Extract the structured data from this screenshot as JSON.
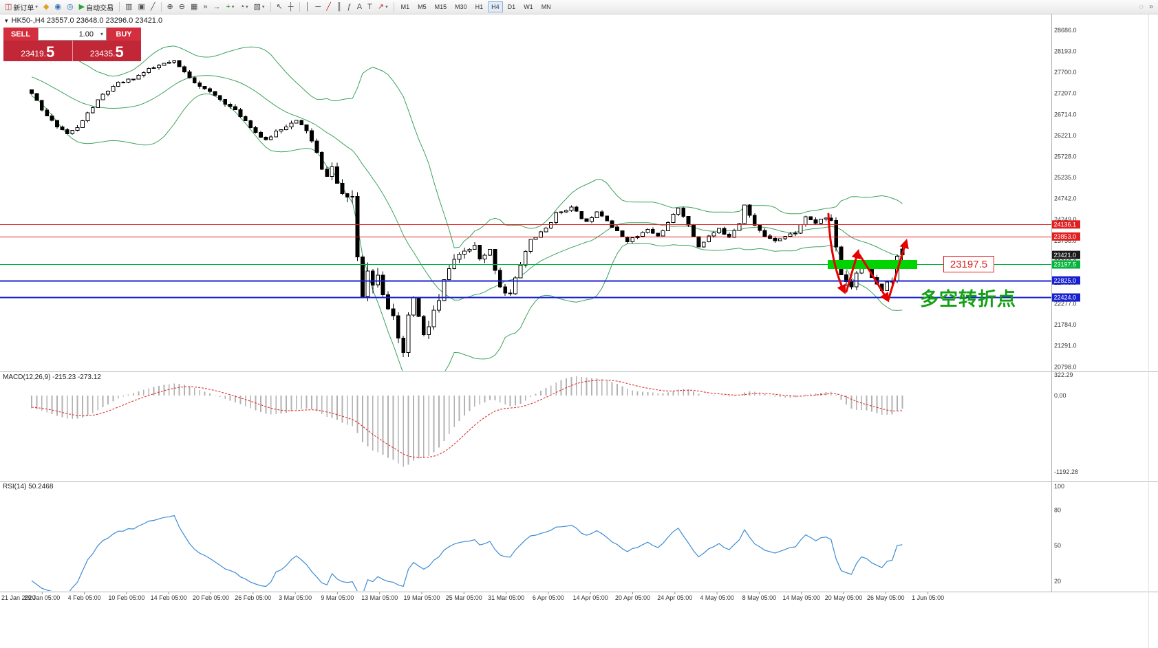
{
  "toolbar": {
    "new_order_label": "新订单",
    "autotrading_label": "自动交易",
    "timeframes": [
      "M1",
      "M5",
      "M15",
      "M30",
      "H1",
      "H4",
      "D1",
      "W1",
      "MN"
    ],
    "active_timeframe": "H4",
    "items": [
      {
        "kind": "labeled",
        "name": "new-order-button",
        "glyph": "◫",
        "glyph_color": "#a83232",
        "label_key": "new_order_label",
        "dropdown": true
      },
      {
        "kind": "icon",
        "name": "metaeditor-icon",
        "glyph": "◆",
        "color": "#d9a521"
      },
      {
        "kind": "icon",
        "name": "algo-trading-icon",
        "glyph": "◉",
        "color": "#3070b8"
      },
      {
        "kind": "icon",
        "name": "market-info-icon",
        "glyph": "◎",
        "color": "#3070b8"
      },
      {
        "kind": "labeled",
        "name": "autotrading-button",
        "glyph": "▶",
        "glyph_color": "#2fa23a",
        "label_key": "autotrading_label",
        "dropdown": false
      },
      {
        "kind": "sep"
      },
      {
        "kind": "icon",
        "name": "bar-chart-icon",
        "glyph": "▥",
        "color": "#505050"
      },
      {
        "kind": "icon",
        "name": "candlestick-chart-icon",
        "glyph": "▣",
        "color": "#505050"
      },
      {
        "kind": "icon",
        "name": "line-chart-icon",
        "glyph": "╱",
        "color": "#505050"
      },
      {
        "kind": "sep"
      },
      {
        "kind": "icon",
        "name": "zoom-in-icon",
        "glyph": "⊕",
        "color": "#505050"
      },
      {
        "kind": "icon",
        "name": "zoom-out-icon",
        "glyph": "⊖",
        "color": "#505050"
      },
      {
        "kind": "icon",
        "name": "tile-windows-icon",
        "glyph": "▦",
        "color": "#505050"
      },
      {
        "kind": "icon",
        "name": "auto-scroll-icon",
        "glyph": "»",
        "color": "#505050"
      },
      {
        "kind": "icon",
        "name": "chart-shift-icon",
        "glyph": "→",
        "color": "#505050"
      },
      {
        "kind": "icon-dd",
        "name": "indicators-menu-icon",
        "glyph": "+",
        "color": "#1e9e3c"
      },
      {
        "kind": "icon-dd",
        "name": "periods-menu-icon",
        "glyph": "◔",
        "color": "#505050"
      },
      {
        "kind": "icon-dd",
        "name": "templates-menu-icon",
        "glyph": "▧",
        "color": "#505050"
      },
      {
        "kind": "sep"
      },
      {
        "kind": "icon",
        "name": "cursor-icon",
        "glyph": "↖",
        "color": "#505050"
      },
      {
        "kind": "icon",
        "name": "crosshair-icon",
        "glyph": "┼",
        "color": "#505050"
      },
      {
        "kind": "sep"
      },
      {
        "kind": "icon",
        "name": "vertical-line-icon",
        "glyph": "│",
        "color": "#505050"
      },
      {
        "kind": "icon",
        "name": "horizontal-line-icon",
        "glyph": "─",
        "color": "#505050"
      },
      {
        "kind": "icon",
        "name": "trendline-icon",
        "glyph": "╱",
        "color": "#b03030"
      },
      {
        "kind": "icon",
        "name": "channel-icon",
        "glyph": "║",
        "color": "#505050"
      },
      {
        "kind": "icon",
        "name": "fibonacci-icon",
        "glyph": "ƒ",
        "color": "#505050"
      },
      {
        "kind": "icon",
        "name": "text-icon",
        "glyph": "A",
        "color": "#505050"
      },
      {
        "kind": "icon",
        "name": "text-label-icon",
        "glyph": "T",
        "color": "#505050"
      },
      {
        "kind": "icon-dd",
        "name": "arrow-objects-icon",
        "glyph": "↗",
        "color": "#b03030"
      },
      {
        "kind": "sep"
      }
    ],
    "right_items": [
      {
        "name": "quick-search-icon",
        "glyph": "◌"
      },
      {
        "name": "toolbar-overflow-icon",
        "glyph": "»"
      }
    ]
  },
  "chart": {
    "title_text": "HK50-,H4 23557.0 23648.0 23296.0 23421.0",
    "toggle_glyph": "▾",
    "colors": {
      "bollinger": "#3aa25c",
      "zone": "#00d400",
      "rsi": "#3d8bd4",
      "macd_signal": "#e03030",
      "macd_histogram": "#b2b2b2",
      "candle_up": "#ffffff",
      "candle_down": "#000000"
    },
    "hlines": [
      {
        "price": 24136.1,
        "tag": "24136.1",
        "color": "#e02020",
        "width": 1
      },
      {
        "price": 23853.0,
        "tag": "23853.0",
        "color": "#e02020",
        "width": 1
      },
      {
        "price": 23421.0,
        "tag": "23421.0",
        "color": "#1b1b1b",
        "width": 0
      },
      {
        "price": 23197.5,
        "tag": "23197.5",
        "color": "#00b43c",
        "width": 1
      },
      {
        "price": 22825.0,
        "tag": "22825.0",
        "color": "#1821cf",
        "width": 2
      },
      {
        "price": 22424.0,
        "tag": "22424.0",
        "color": "#1821cf",
        "width": 2
      }
    ],
    "annotations": {
      "zone_price": 23197.5,
      "zone_label": "23197.5",
      "zone_x1": 1203,
      "zone_x2": 1333,
      "turning_point_text": "多空转折点",
      "arrow_color": "#e60000",
      "arrows": [
        "M1204,311 Q1207,382 1227,424",
        "M1230,424 L1247,366",
        "M1249,370 Q1263,392 1290,436",
        "M1291,436 L1317,351"
      ]
    }
  },
  "trade_panel": {
    "sell_label": "SELL",
    "buy_label": "BUY",
    "volume": "1.00",
    "dropdown_glyph": "▾",
    "sell_price": "23419.5",
    "buy_price": "23435.5",
    "sell_price_small": "23419.",
    "sell_price_big": "5",
    "buy_price_small": "23435.",
    "buy_price_big": "5"
  },
  "macd_panel": {
    "label": "MACD(12,26,9) -215.23 -273.12",
    "axis_labels": [
      "322.29",
      "0.00",
      "-1192.28"
    ],
    "axis_values": [
      322.29,
      0,
      -1192.28
    ]
  },
  "rsi_panel": {
    "label": "RSI(14) 50.2468",
    "axis_labels": [
      "100",
      "80",
      "50",
      "20"
    ],
    "axis_values": [
      100,
      80,
      50,
      20
    ]
  },
  "chart_data": {
    "type": "candlestick",
    "symbol": "HK50-",
    "period": "H4",
    "ohlc_current": {
      "open": 23557.0,
      "high": 23648.0,
      "low": 23296.0,
      "close": 23421.0
    },
    "ylim": [
      20798.0,
      28686.0
    ],
    "y_axis_labels": [
      "28686.0",
      "28193.0",
      "27700.0",
      "27207.0",
      "26714.0",
      "26221.0",
      "25728.0",
      "25235.0",
      "24742.0",
      "24249.0",
      "23756.0",
      "23263.0",
      "22770.0",
      "22277.0",
      "21784.0",
      "21291.0",
      "20798.0"
    ],
    "x_labels": [
      "21 Jan 2020",
      "29 Jan 05:00",
      "4 Feb 05:00",
      "10 Feb 05:00",
      "14 Feb 05:00",
      "20 Feb 05:00",
      "26 Feb 05:00",
      "3 Mar 05:00",
      "9 Mar 05:00",
      "13 Mar 05:00",
      "19 Mar 05:00",
      "25 Mar 05:00",
      "31 Mar 05:00",
      "6 Apr 05:00",
      "14 Apr 05:00",
      "20 Apr 05:00",
      "24 Apr 05:00",
      "4 May 05:00",
      "8 May 05:00",
      "14 May 05:00",
      "20 May 05:00",
      "26 May 05:00",
      "1 Jun 05:00"
    ],
    "horizontal_levels": [
      24136.1,
      23853.0,
      23421.0,
      23197.5,
      22825.0,
      22424.0
    ],
    "indicators": [
      {
        "name": "Bollinger Bands",
        "period": 20,
        "deviation": 2
      },
      {
        "name": "MACD",
        "params": "12,26,9",
        "value_main": -215.23,
        "value_signal": -273.12
      },
      {
        "name": "RSI",
        "params": "14",
        "value": 50.2468
      }
    ],
    "n_candles": 172,
    "seed": 11,
    "pre_start": 28400,
    "pre_noise": 260,
    "price_anchors": [
      [
        0,
        27220
      ],
      [
        2,
        26800
      ],
      [
        4,
        26550
      ],
      [
        7,
        26260
      ],
      [
        9,
        26400
      ],
      [
        11,
        26740
      ],
      [
        14,
        27180
      ],
      [
        17,
        27440
      ],
      [
        20,
        27560
      ],
      [
        23,
        27760
      ],
      [
        26,
        27900
      ],
      [
        28,
        27950
      ],
      [
        30,
        27700
      ],
      [
        32,
        27480
      ],
      [
        34,
        27300
      ],
      [
        36,
        27150
      ],
      [
        38,
        26980
      ],
      [
        40,
        26800
      ],
      [
        42,
        26570
      ],
      [
        44,
        26300
      ],
      [
        46,
        26090
      ],
      [
        48,
        26320
      ],
      [
        50,
        26450
      ],
      [
        52,
        26550
      ],
      [
        54,
        26350
      ],
      [
        56,
        25800
      ],
      [
        57,
        25400
      ],
      [
        58,
        25300
      ],
      [
        59,
        25480
      ],
      [
        60,
        25100
      ],
      [
        61,
        24850
      ],
      [
        62,
        24700
      ],
      [
        63,
        24800
      ],
      [
        64,
        23400
      ],
      [
        65,
        22550
      ],
      [
        66,
        23150
      ],
      [
        67,
        22700
      ],
      [
        68,
        23050
      ],
      [
        69,
        22600
      ],
      [
        70,
        22250
      ],
      [
        71,
        21900
      ],
      [
        72,
        21350
      ],
      [
        73,
        21120
      ],
      [
        74,
        21900
      ],
      [
        75,
        22450
      ],
      [
        76,
        21950
      ],
      [
        77,
        21500
      ],
      [
        78,
        21750
      ],
      [
        79,
        22100
      ],
      [
        80,
        22300
      ],
      [
        81,
        22800
      ],
      [
        82,
        23100
      ],
      [
        83,
        23250
      ],
      [
        84,
        23380
      ],
      [
        85,
        23500
      ],
      [
        86,
        23560
      ],
      [
        87,
        23620
      ],
      [
        88,
        23300
      ],
      [
        89,
        23380
      ],
      [
        90,
        23520
      ],
      [
        91,
        23100
      ],
      [
        92,
        22700
      ],
      [
        93,
        22550
      ],
      [
        94,
        22500
      ],
      [
        95,
        22850
      ],
      [
        96,
        23200
      ],
      [
        97,
        23500
      ],
      [
        98,
        23780
      ],
      [
        99,
        23850
      ],
      [
        100,
        23930
      ],
      [
        101,
        24050
      ],
      [
        103,
        24380
      ],
      [
        105,
        24500
      ],
      [
        106,
        24520
      ],
      [
        108,
        24300
      ],
      [
        109,
        24180
      ],
      [
        111,
        24460
      ],
      [
        113,
        24250
      ],
      [
        114,
        24080
      ],
      [
        116,
        23850
      ],
      [
        117,
        23760
      ],
      [
        119,
        23860
      ],
      [
        121,
        24010
      ],
      [
        123,
        23860
      ],
      [
        125,
        24160
      ],
      [
        127,
        24540
      ],
      [
        128,
        24350
      ],
      [
        129,
        24100
      ],
      [
        131,
        23620
      ],
      [
        133,
        23860
      ],
      [
        135,
        24010
      ],
      [
        137,
        23860
      ],
      [
        139,
        24180
      ],
      [
        140,
        24620
      ],
      [
        141,
        24350
      ],
      [
        142,
        24100
      ],
      [
        144,
        23870
      ],
      [
        146,
        23780
      ],
      [
        148,
        23860
      ],
      [
        150,
        23950
      ],
      [
        151,
        24120
      ],
      [
        152,
        24330
      ],
      [
        153,
        24220
      ],
      [
        154,
        24170
      ],
      [
        155,
        24260
      ],
      [
        156,
        24280
      ],
      [
        157,
        24230
      ],
      [
        158,
        23650
      ],
      [
        159,
        22980
      ],
      [
        160,
        22820
      ],
      [
        161,
        22700
      ],
      [
        162,
        23010
      ],
      [
        163,
        23280
      ],
      [
        164,
        23080
      ],
      [
        165,
        22880
      ],
      [
        166,
        22700
      ],
      [
        167,
        22560
      ],
      [
        168,
        22820
      ],
      [
        169,
        22780
      ],
      [
        170,
        23380
      ],
      [
        171,
        23421
      ]
    ],
    "vol_anchors": [
      [
        0,
        110
      ],
      [
        20,
        100
      ],
      [
        40,
        110
      ],
      [
        55,
        150
      ],
      [
        60,
        220
      ],
      [
        63,
        300
      ],
      [
        64,
        420
      ],
      [
        75,
        420
      ],
      [
        80,
        330
      ],
      [
        85,
        220
      ],
      [
        90,
        200
      ],
      [
        95,
        170
      ],
      [
        100,
        130
      ],
      [
        110,
        110
      ],
      [
        120,
        100
      ],
      [
        130,
        100
      ],
      [
        140,
        130
      ],
      [
        150,
        100
      ],
      [
        156,
        110
      ],
      [
        158,
        260
      ],
      [
        162,
        220
      ],
      [
        167,
        180
      ],
      [
        171,
        130
      ]
    ]
  }
}
